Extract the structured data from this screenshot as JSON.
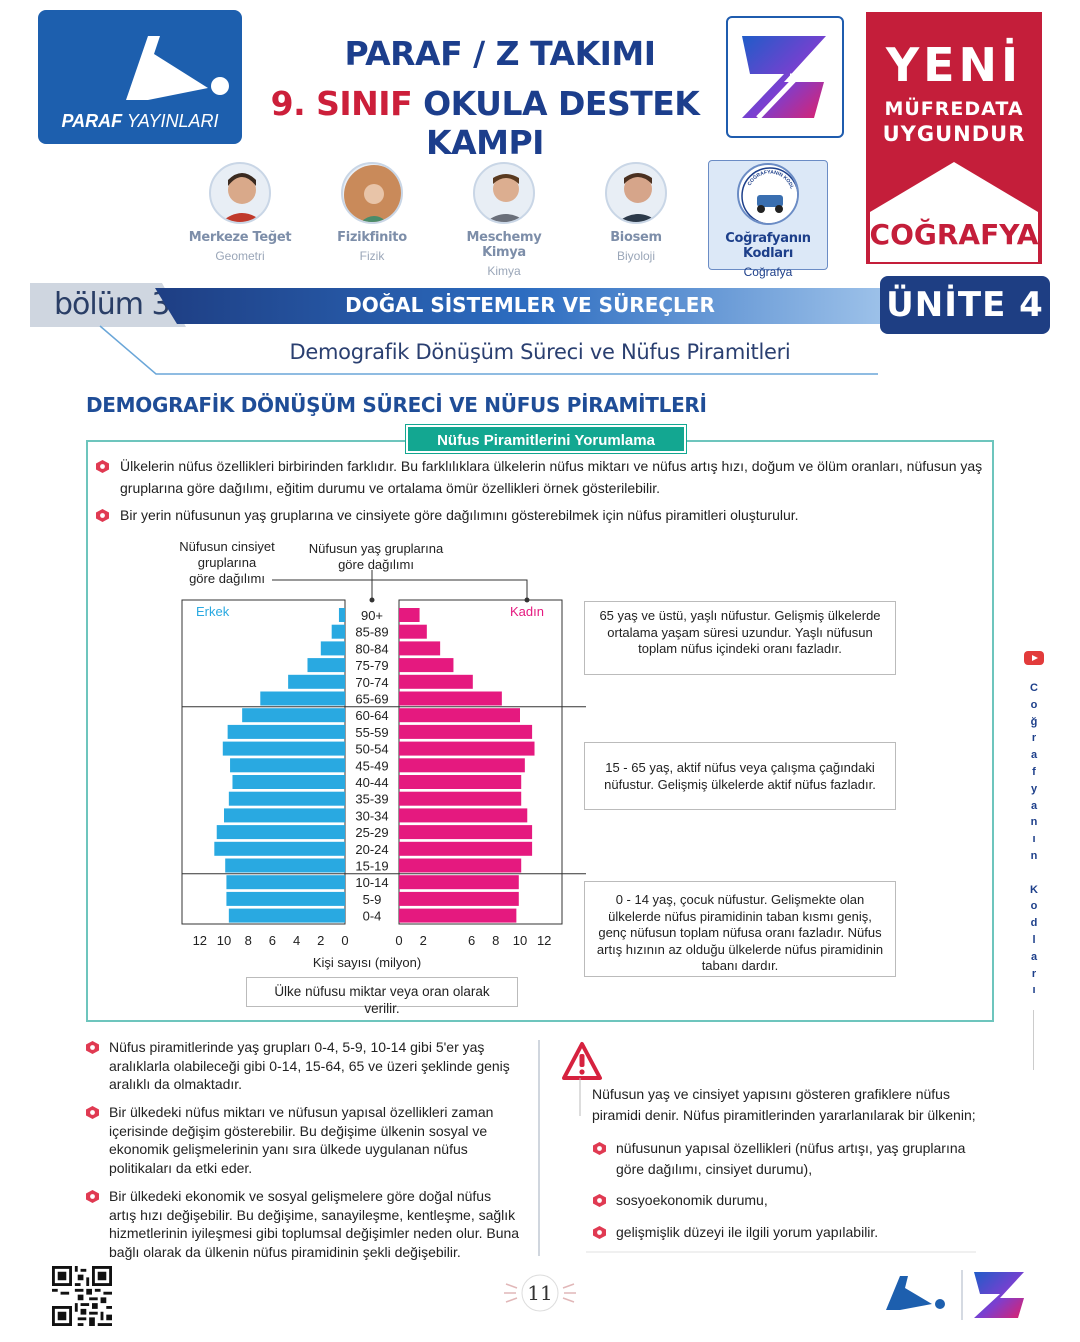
{
  "header": {
    "publisher_logo_text": "PARAF",
    "publisher_logo_text2": "YAYINLARI",
    "title_line1": "PARAF / Z TAKIMI",
    "title_line2_red": "9. SINIF",
    "title_line2": " OKULA DESTEK KAMPI",
    "ribbon_line1": "YENİ",
    "ribbon_line2": "MÜFREDATA",
    "ribbon_line3": "UYGUNDUR",
    "ribbon_subject": "COĞRAFYA",
    "accent_red": "#cc1f3a",
    "accent_blue": "#1c3e8c"
  },
  "teachers": [
    {
      "name": "Merkeze Teğet",
      "subject": "Geometri"
    },
    {
      "name": "Fizikfinito",
      "subject": "Fizik"
    },
    {
      "name": "Meschemy Kimya",
      "subject": "Kimya"
    },
    {
      "name": "Biosem",
      "subject": "Biyoloji"
    },
    {
      "name": "Coğrafyanın Kodları",
      "subject": "Coğrafya",
      "badge": "COĞRAFYANIN KODLARI"
    }
  ],
  "section": {
    "bolum": "bölüm 3",
    "title": "DOĞAL SİSTEMLER VE SÜREÇLER",
    "unite": "ÜNİTE  4",
    "subtitle": "Demografik Dönüşüm Süreci ve Nüfus Piramitleri"
  },
  "main_title": "DEMOGRAFİK DÖNÜŞÜM SÜRECİ VE NÜFUS PİRAMİTLERİ",
  "box": {
    "tab": "Nüfus Piramitlerini Yorumlama",
    "bullet1": "Ülkelerin nüfus özellikleri birbirinden farklıdır. Bu farklılıklara ülkelerin nüfus miktarı ve nüfus artış hızı, doğum ve ölüm oranları, nüfusun yaş gruplarına göre dağılımı, eğitim durumu ve ortalama ömür özellikleri örnek gösterilebilir.",
    "bullet2": "Bir yerin nüfusunun yaş gruplarına ve cinsiyete göre dağılımını gösterebilmek için nüfus piramitleri oluşturulur.",
    "label_sex_l1": "Nüfusun cinsiyet",
    "label_sex_l2": "gruplarına",
    "label_sex_l3": "göre dağılımı",
    "label_age_l1": "Nüfusun yaş gruplarına",
    "label_age_l2": "göre dağılımı",
    "info_old": "65 yaş ve üstü, yaşlı nüfustur. Gelişmiş ülkelerde ortalama yaşam süresi uzundur. Yaşlı nüfusun toplam nüfus içindeki oranı fazladır.",
    "info_active": "15 - 65 yaş, aktif nüfus veya çalışma çağındaki nüfustur. Gelişmiş ülkelerde aktif nüfus fazladır.",
    "info_young": "0 - 14 yaş, çocuk nüfustur. Gelişmekte olan ülkelerde nüfus piramidinin taban kısmı geniş, genç nüfusun toplam nüfusa oranı fazladır. Nüfus artış hızının az olduğu ülkelerde nüfus piramidinin tabanı dardır.",
    "note": "Ülke nüfusu miktar veya oran olarak verilir."
  },
  "chart_data": {
    "type": "bar",
    "subtype": "population-pyramid",
    "categories": [
      "90+",
      "85-89",
      "80-84",
      "75-79",
      "70-74",
      "65-69",
      "60-64",
      "55-59",
      "50-54",
      "45-49",
      "40-44",
      "35-39",
      "30-34",
      "25-29",
      "20-24",
      "15-19",
      "10-14",
      "5-9",
      "0-4"
    ],
    "series": [
      {
        "name": "Erkek",
        "color": "#29a9e1",
        "values": [
          0.5,
          1.1,
          2.0,
          3.1,
          4.7,
          7.0,
          8.5,
          9.7,
          10.1,
          9.5,
          9.3,
          9.6,
          10.0,
          10.6,
          10.8,
          9.9,
          9.8,
          9.8,
          9.6
        ]
      },
      {
        "name": "Kadın",
        "color": "#e5197f",
        "values": [
          1.7,
          2.3,
          3.4,
          4.5,
          6.1,
          8.5,
          10.0,
          11.0,
          11.2,
          10.4,
          10.1,
          10.1,
          10.6,
          11.0,
          11.0,
          10.1,
          9.9,
          9.9,
          9.7
        ]
      }
    ],
    "xlabel": "Kişi sayısı (milyon)",
    "xticks": [
      "12",
      "10",
      "8",
      "6",
      "4",
      "2",
      "0"
    ],
    "xticks_right": [
      "0",
      "2",
      "6",
      "8",
      "10",
      "12"
    ],
    "xlim": [
      0,
      12
    ]
  },
  "bottom_left": {
    "b1": "Nüfus piramitlerinde yaş grupları 0-4, 5-9, 10-14 gibi 5'er yaş aralıklarla olabileceği gibi 0-14, 15-64, 65 ve üzeri şeklinde geniş aralıklı da olmaktadır.",
    "b2": "Bir ülkedeki nüfus miktarı ve nüfusun yapısal özellikleri zaman içerisinde değişim gösterebilir. Bu değişime ülkenin sosyal ve ekonomik gelişmelerinin yanı sıra ülkede uygulanan nüfus politikaları da etki eder.",
    "b3": "Bir ülkedeki ekonomik ve sosyal gelişmelere göre doğal nüfus artış hızı değişebilir. Bu değişime, sanayileşme, kentleşme, sağlık hizmetlerinin iyileşmesi gibi toplumsal değişimler neden olur. Buna bağlı olarak da ülkenin nüfus piramidinin şekli değişebilir."
  },
  "bottom_right": {
    "intro": "Nüfusun yaş ve cinsiyet yapısını gösteren grafiklere nüfus piramidi denir. Nüfus piramitlerinden yararlanılarak bir ülkenin;",
    "i1": "nüfusunun yapısal özellikleri (nüfus artışı, yaş gruplarına göre dağılımı, cinsiyet durumu),",
    "i2": "sosyoekonomik durumu,",
    "i3": "gelişmişlik düzeyi ile ilgili yorum yapılabilir."
  },
  "footer": {
    "page": "11",
    "side_text": "Coğrafyanın Kodları"
  }
}
